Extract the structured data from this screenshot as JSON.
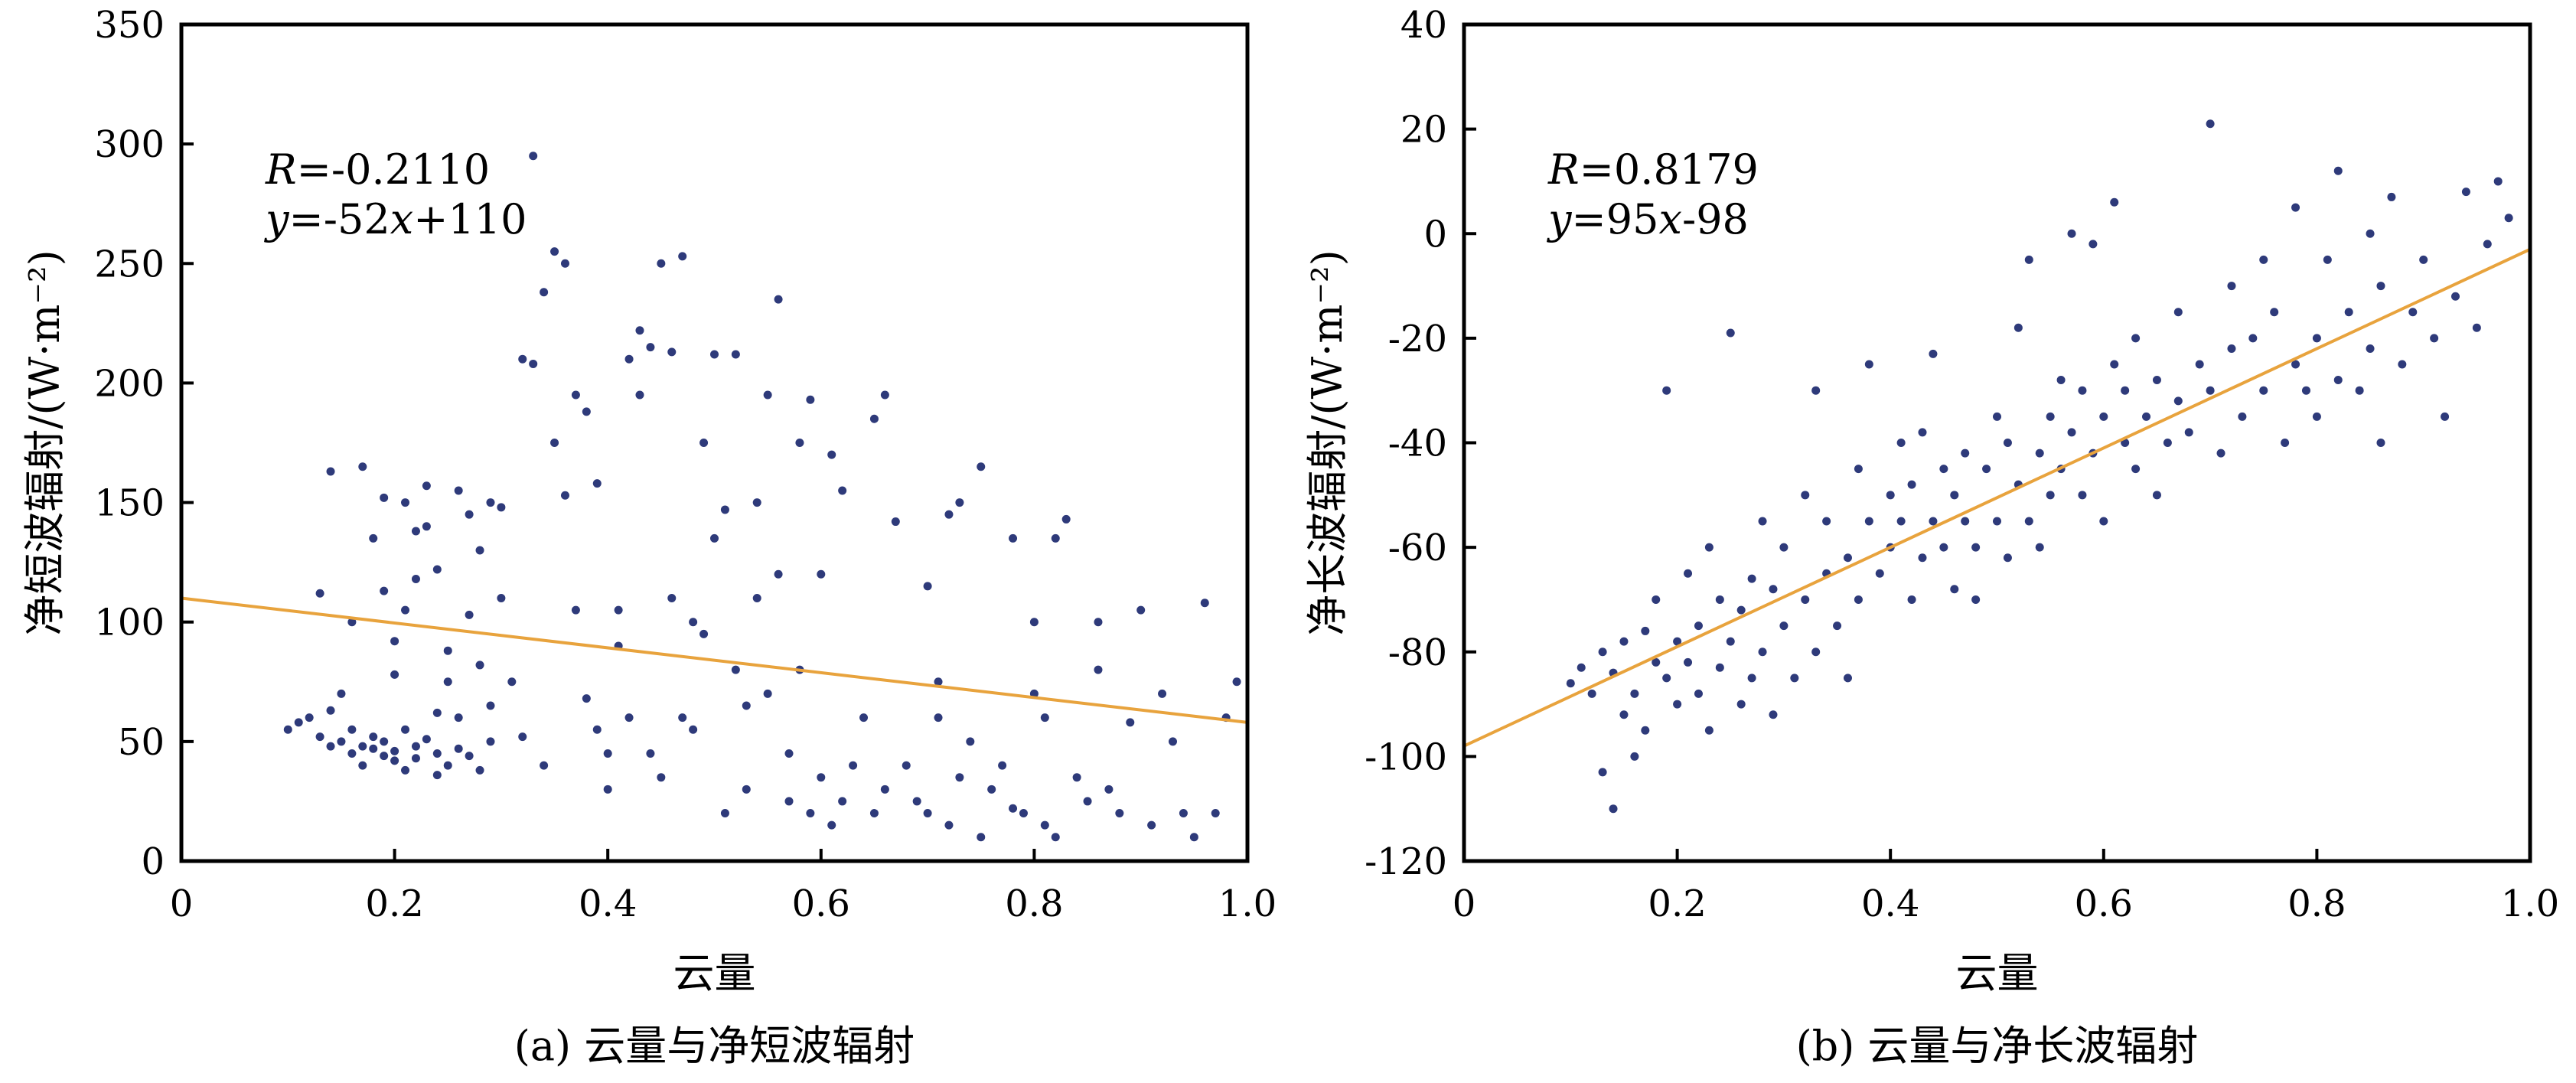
{
  "chart_data": [
    {
      "type": "scatter",
      "caption": "(a) 云量与净短波辐射",
      "xlabel": "云量",
      "ylabel": "净短波辐射/(W·m⁻²)",
      "xlim": [
        0,
        1.0
      ],
      "ylim": [
        0,
        350
      ],
      "xticks": [
        "0",
        "0.2",
        "0.4",
        "0.6",
        "0.8",
        "1.0"
      ],
      "yticks": [
        "0",
        "50",
        "100",
        "150",
        "200",
        "250",
        "300",
        "350"
      ],
      "annotation": {
        "r_label": "R",
        "r_value": "=-0.2110",
        "eq_y": "y",
        "eq_mid": "=-52",
        "eq_x": "x",
        "eq_tail": "+110"
      },
      "fit": {
        "slope": -52,
        "intercept": 110,
        "color": "#E8A33D"
      },
      "point_color": "#2E3A7A",
      "points": [
        [
          0.1,
          55
        ],
        [
          0.11,
          58
        ],
        [
          0.12,
          60
        ],
        [
          0.13,
          52
        ],
        [
          0.14,
          48
        ],
        [
          0.14,
          63
        ],
        [
          0.15,
          50
        ],
        [
          0.15,
          70
        ],
        [
          0.16,
          55
        ],
        [
          0.16,
          45
        ],
        [
          0.17,
          40
        ],
        [
          0.17,
          48
        ],
        [
          0.18,
          52
        ],
        [
          0.18,
          47
        ],
        [
          0.19,
          44
        ],
        [
          0.19,
          50
        ],
        [
          0.2,
          46
        ],
        [
          0.2,
          42
        ],
        [
          0.21,
          55
        ],
        [
          0.21,
          38
        ],
        [
          0.22,
          48
        ],
        [
          0.22,
          43
        ],
        [
          0.23,
          51
        ],
        [
          0.24,
          36
        ],
        [
          0.24,
          45
        ],
        [
          0.25,
          40
        ],
        [
          0.26,
          47
        ],
        [
          0.27,
          44
        ],
        [
          0.28,
          38
        ],
        [
          0.29,
          50
        ],
        [
          0.13,
          112
        ],
        [
          0.14,
          163
        ],
        [
          0.16,
          100
        ],
        [
          0.17,
          165
        ],
        [
          0.18,
          135
        ],
        [
          0.19,
          113
        ],
        [
          0.19,
          152
        ],
        [
          0.2,
          78
        ],
        [
          0.2,
          92
        ],
        [
          0.21,
          150
        ],
        [
          0.21,
          105
        ],
        [
          0.22,
          138
        ],
        [
          0.22,
          118
        ],
        [
          0.23,
          157
        ],
        [
          0.23,
          140
        ],
        [
          0.24,
          122
        ],
        [
          0.24,
          62
        ],
        [
          0.25,
          88
        ],
        [
          0.25,
          75
        ],
        [
          0.26,
          155
        ],
        [
          0.26,
          60
        ],
        [
          0.27,
          103
        ],
        [
          0.27,
          145
        ],
        [
          0.28,
          130
        ],
        [
          0.28,
          82
        ],
        [
          0.29,
          150
        ],
        [
          0.29,
          65
        ],
        [
          0.3,
          148
        ],
        [
          0.3,
          110
        ],
        [
          0.31,
          75
        ],
        [
          0.32,
          52
        ],
        [
          0.32,
          210
        ],
        [
          0.33,
          208
        ],
        [
          0.33,
          295
        ],
        [
          0.34,
          238
        ],
        [
          0.34,
          40
        ],
        [
          0.35,
          255
        ],
        [
          0.35,
          175
        ],
        [
          0.36,
          250
        ],
        [
          0.36,
          153
        ],
        [
          0.37,
          195
        ],
        [
          0.37,
          105
        ],
        [
          0.38,
          188
        ],
        [
          0.38,
          68
        ],
        [
          0.39,
          55
        ],
        [
          0.39,
          158
        ],
        [
          0.4,
          45
        ],
        [
          0.4,
          30
        ],
        [
          0.41,
          90
        ],
        [
          0.41,
          105
        ],
        [
          0.42,
          60
        ],
        [
          0.42,
          210
        ],
        [
          0.43,
          195
        ],
        [
          0.43,
          222
        ],
        [
          0.44,
          45
        ],
        [
          0.44,
          215
        ],
        [
          0.45,
          250
        ],
        [
          0.45,
          35
        ],
        [
          0.46,
          213
        ],
        [
          0.46,
          110
        ],
        [
          0.47,
          60
        ],
        [
          0.47,
          253
        ],
        [
          0.48,
          100
        ],
        [
          0.48,
          55
        ],
        [
          0.49,
          175
        ],
        [
          0.49,
          95
        ],
        [
          0.5,
          135
        ],
        [
          0.5,
          212
        ],
        [
          0.51,
          147
        ],
        [
          0.51,
          20
        ],
        [
          0.52,
          212
        ],
        [
          0.52,
          80
        ],
        [
          0.53,
          30
        ],
        [
          0.53,
          65
        ],
        [
          0.54,
          150
        ],
        [
          0.54,
          110
        ],
        [
          0.55,
          70
        ],
        [
          0.55,
          195
        ],
        [
          0.56,
          235
        ],
        [
          0.56,
          120
        ],
        [
          0.57,
          25
        ],
        [
          0.57,
          45
        ],
        [
          0.58,
          175
        ],
        [
          0.58,
          80
        ],
        [
          0.59,
          193
        ],
        [
          0.59,
          20
        ],
        [
          0.6,
          120
        ],
        [
          0.6,
          35
        ],
        [
          0.61,
          170
        ],
        [
          0.61,
          15
        ],
        [
          0.62,
          155
        ],
        [
          0.62,
          25
        ],
        [
          0.63,
          40
        ],
        [
          0.64,
          60
        ],
        [
          0.65,
          185
        ],
        [
          0.65,
          20
        ],
        [
          0.66,
          195
        ],
        [
          0.66,
          30
        ],
        [
          0.67,
          142
        ],
        [
          0.68,
          40
        ],
        [
          0.69,
          25
        ],
        [
          0.7,
          115
        ],
        [
          0.7,
          20
        ],
        [
          0.71,
          75
        ],
        [
          0.71,
          60
        ],
        [
          0.72,
          145
        ],
        [
          0.72,
          15
        ],
        [
          0.73,
          150
        ],
        [
          0.73,
          35
        ],
        [
          0.74,
          50
        ],
        [
          0.75,
          165
        ],
        [
          0.75,
          10
        ],
        [
          0.76,
          30
        ],
        [
          0.77,
          40
        ],
        [
          0.78,
          135
        ],
        [
          0.78,
          22
        ],
        [
          0.79,
          20
        ],
        [
          0.8,
          100
        ],
        [
          0.8,
          70
        ],
        [
          0.81,
          60
        ],
        [
          0.81,
          15
        ],
        [
          0.82,
          135
        ],
        [
          0.82,
          10
        ],
        [
          0.83,
          143
        ],
        [
          0.84,
          35
        ],
        [
          0.85,
          25
        ],
        [
          0.86,
          100
        ],
        [
          0.86,
          80
        ],
        [
          0.87,
          30
        ],
        [
          0.88,
          20
        ],
        [
          0.89,
          58
        ],
        [
          0.9,
          105
        ],
        [
          0.91,
          15
        ],
        [
          0.92,
          70
        ],
        [
          0.93,
          50
        ],
        [
          0.94,
          20
        ],
        [
          0.95,
          10
        ],
        [
          0.96,
          108
        ],
        [
          0.97,
          20
        ],
        [
          0.98,
          60
        ],
        [
          0.99,
          75
        ]
      ]
    },
    {
      "type": "scatter",
      "caption": "(b) 云量与净长波辐射",
      "xlabel": "云量",
      "ylabel": "净长波辐射/(W·m⁻²)",
      "xlim": [
        0,
        1.0
      ],
      "ylim": [
        -120,
        40
      ],
      "xticks": [
        "0",
        "0.2",
        "0.4",
        "0.6",
        "0.8",
        "1.0"
      ],
      "yticks": [
        "-120",
        "-100",
        "-80",
        "-60",
        "-40",
        "-20",
        "0",
        "20",
        "40"
      ],
      "annotation": {
        "r_label": "R",
        "r_value": "=0.8179",
        "eq_y": "y",
        "eq_mid": "=95",
        "eq_x": "x",
        "eq_tail": "-98"
      },
      "fit": {
        "slope": 95,
        "intercept": -98,
        "color": "#E8A33D"
      },
      "point_color": "#2E3A7A",
      "points": [
        [
          0.1,
          -86
        ],
        [
          0.11,
          -83
        ],
        [
          0.12,
          -88
        ],
        [
          0.13,
          -80
        ],
        [
          0.13,
          -103
        ],
        [
          0.14,
          -110
        ],
        [
          0.14,
          -84
        ],
        [
          0.15,
          -92
        ],
        [
          0.15,
          -78
        ],
        [
          0.16,
          -88
        ],
        [
          0.16,
          -100
        ],
        [
          0.17,
          -76
        ],
        [
          0.17,
          -95
        ],
        [
          0.18,
          -82
        ],
        [
          0.18,
          -70
        ],
        [
          0.19,
          -85
        ],
        [
          0.19,
          -30
        ],
        [
          0.2,
          -78
        ],
        [
          0.2,
          -90
        ],
        [
          0.21,
          -65
        ],
        [
          0.21,
          -82
        ],
        [
          0.22,
          -75
        ],
        [
          0.22,
          -88
        ],
        [
          0.23,
          -60
        ],
        [
          0.23,
          -95
        ],
        [
          0.24,
          -70
        ],
        [
          0.24,
          -83
        ],
        [
          0.25,
          -19
        ],
        [
          0.25,
          -78
        ],
        [
          0.26,
          -90
        ],
        [
          0.26,
          -72
        ],
        [
          0.27,
          -66
        ],
        [
          0.27,
          -85
        ],
        [
          0.28,
          -80
        ],
        [
          0.28,
          -55
        ],
        [
          0.29,
          -68
        ],
        [
          0.29,
          -92
        ],
        [
          0.3,
          -75
        ],
        [
          0.3,
          -60
        ],
        [
          0.31,
          -85
        ],
        [
          0.32,
          -70
        ],
        [
          0.32,
          -50
        ],
        [
          0.33,
          -30
        ],
        [
          0.33,
          -80
        ],
        [
          0.34,
          -65
        ],
        [
          0.34,
          -55
        ],
        [
          0.35,
          -75
        ],
        [
          0.36,
          -62
        ],
        [
          0.36,
          -85
        ],
        [
          0.37,
          -45
        ],
        [
          0.37,
          -70
        ],
        [
          0.38,
          -55
        ],
        [
          0.38,
          -25
        ],
        [
          0.39,
          -65
        ],
        [
          0.4,
          -50
        ],
        [
          0.4,
          -60
        ],
        [
          0.41,
          -55
        ],
        [
          0.41,
          -40
        ],
        [
          0.42,
          -70
        ],
        [
          0.42,
          -48
        ],
        [
          0.43,
          -62
        ],
        [
          0.43,
          -38
        ],
        [
          0.44,
          -55
        ],
        [
          0.44,
          -23
        ],
        [
          0.45,
          -45
        ],
        [
          0.45,
          -60
        ],
        [
          0.46,
          -50
        ],
        [
          0.46,
          -68
        ],
        [
          0.47,
          -42
        ],
        [
          0.47,
          -55
        ],
        [
          0.48,
          -60
        ],
        [
          0.48,
          -70
        ],
        [
          0.49,
          -45
        ],
        [
          0.5,
          -55
        ],
        [
          0.5,
          -35
        ],
        [
          0.51,
          -62
        ],
        [
          0.51,
          -40
        ],
        [
          0.52,
          -48
        ],
        [
          0.52,
          -18
        ],
        [
          0.53,
          -55
        ],
        [
          0.53,
          -5
        ],
        [
          0.54,
          -42
        ],
        [
          0.54,
          -60
        ],
        [
          0.55,
          -35
        ],
        [
          0.55,
          -50
        ],
        [
          0.56,
          -45
        ],
        [
          0.56,
          -28
        ],
        [
          0.57,
          -38
        ],
        [
          0.57,
          0
        ],
        [
          0.58,
          -50
        ],
        [
          0.58,
          -30
        ],
        [
          0.59,
          -42
        ],
        [
          0.59,
          -2
        ],
        [
          0.6,
          -35
        ],
        [
          0.6,
          -55
        ],
        [
          0.61,
          -25
        ],
        [
          0.61,
          6
        ],
        [
          0.62,
          -40
        ],
        [
          0.62,
          -30
        ],
        [
          0.63,
          -45
        ],
        [
          0.63,
          -20
        ],
        [
          0.64,
          -35
        ],
        [
          0.65,
          -28
        ],
        [
          0.65,
          -50
        ],
        [
          0.66,
          -40
        ],
        [
          0.67,
          -15
        ],
        [
          0.67,
          -32
        ],
        [
          0.68,
          -38
        ],
        [
          0.69,
          -25
        ],
        [
          0.7,
          21
        ],
        [
          0.7,
          -30
        ],
        [
          0.71,
          -42
        ],
        [
          0.72,
          -22
        ],
        [
          0.72,
          -10
        ],
        [
          0.73,
          -35
        ],
        [
          0.74,
          -20
        ],
        [
          0.75,
          -5
        ],
        [
          0.75,
          -30
        ],
        [
          0.76,
          -15
        ],
        [
          0.77,
          -40
        ],
        [
          0.78,
          5
        ],
        [
          0.78,
          -25
        ],
        [
          0.79,
          -30
        ],
        [
          0.8,
          -20
        ],
        [
          0.8,
          -35
        ],
        [
          0.81,
          -5
        ],
        [
          0.82,
          -28
        ],
        [
          0.82,
          12
        ],
        [
          0.83,
          -15
        ],
        [
          0.84,
          -30
        ],
        [
          0.85,
          0
        ],
        [
          0.85,
          -22
        ],
        [
          0.86,
          -40
        ],
        [
          0.86,
          -10
        ],
        [
          0.87,
          7
        ],
        [
          0.88,
          -25
        ],
        [
          0.89,
          -15
        ],
        [
          0.9,
          -5
        ],
        [
          0.91,
          -20
        ],
        [
          0.92,
          -35
        ],
        [
          0.93,
          -12
        ],
        [
          0.94,
          8
        ],
        [
          0.95,
          -18
        ],
        [
          0.96,
          -2
        ],
        [
          0.97,
          10
        ],
        [
          0.98,
          3
        ]
      ]
    }
  ]
}
